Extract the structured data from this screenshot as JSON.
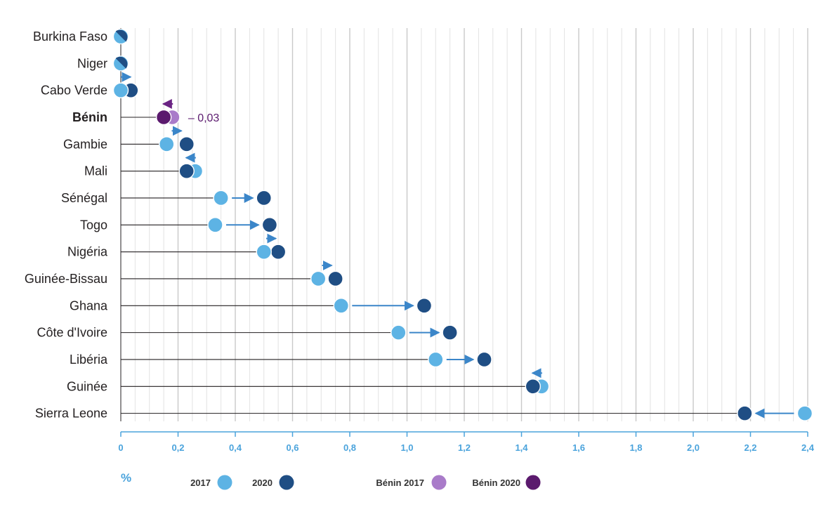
{
  "colors": {
    "c2017": "#5db3e4",
    "c2020": "#1f4e84",
    "benin2017": "#a97bc9",
    "benin2020": "#5b1a6e",
    "arrow": "#3b86c9",
    "arrow_benin": "#6a2383",
    "axis": "#4aa3dc",
    "grid_major": "#c9c9c9",
    "grid_minor": "#e2e2e2",
    "stem": "#231f20"
  },
  "chart_data": {
    "type": "dot",
    "unit": "%",
    "x_ticks": [
      "0",
      "0,2",
      "0,4",
      "0,6",
      "0,8",
      "1,0",
      "1,2",
      "1,4",
      "1,6",
      "1,8",
      "2,0",
      "2,2",
      "2,4"
    ],
    "xlim": [
      0,
      2.4
    ],
    "grid": true,
    "legend_placement": "bottom",
    "highlight_category": "Bénin",
    "rows": [
      {
        "label": "Burkina Faso",
        "v2017": 0.0,
        "v2020": 0.0
      },
      {
        "label": "Niger",
        "v2017": 0.0,
        "v2020": 0.0
      },
      {
        "label": "Cabo Verde",
        "v2017": 0.0,
        "v2020": 0.035
      },
      {
        "label": "Bénin",
        "v2017": 0.18,
        "v2020": 0.15,
        "bold": true,
        "annotation": "– 0,03"
      },
      {
        "label": "Gambie",
        "v2017": 0.16,
        "v2020": 0.23
      },
      {
        "label": "Mali",
        "v2017": 0.26,
        "v2020": 0.23
      },
      {
        "label": "Sénégal",
        "v2017": 0.35,
        "v2020": 0.5
      },
      {
        "label": "Togo",
        "v2017": 0.33,
        "v2020": 0.52
      },
      {
        "label": "Nigéria",
        "v2017": 0.5,
        "v2020": 0.55
      },
      {
        "label": "Guinée-Bissau",
        "v2017": 0.69,
        "v2020": 0.75
      },
      {
        "label": "Ghana",
        "v2017": 0.77,
        "v2020": 1.06
      },
      {
        "label": "Côte d'Ivoire",
        "v2017": 0.97,
        "v2020": 1.15
      },
      {
        "label": "Libéria",
        "v2017": 1.1,
        "v2020": 1.27
      },
      {
        "label": "Guinée",
        "v2017": 1.47,
        "v2020": 1.44
      },
      {
        "label": "Sierra Leone",
        "v2017": 2.39,
        "v2020": 2.18
      }
    ],
    "legend": [
      {
        "label": "2017",
        "color_key": "c2017"
      },
      {
        "label": "2020",
        "color_key": "c2020"
      },
      {
        "label": "Bénin 2017",
        "color_key": "benin2017"
      },
      {
        "label": "Bénin 2020",
        "color_key": "benin2020"
      }
    ]
  }
}
